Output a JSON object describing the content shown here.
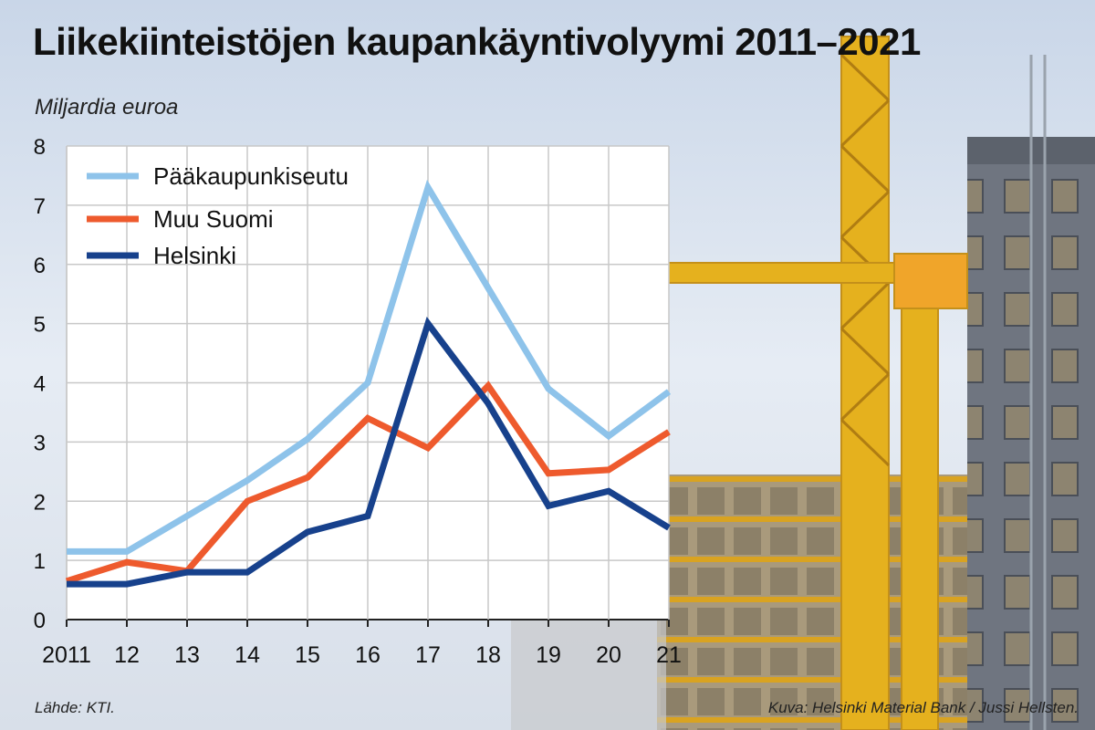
{
  "title": "Liikekiinteistöjen kaupankäyntivolyymi 2011–2021",
  "unit_label": "Miljardia euroa",
  "source": "Lähde: KTI.",
  "photo_credit": "Kuva: Helsinki Material Bank / Jussi Hellsten.",
  "chart_data": {
    "type": "line",
    "title": "Liikekiinteistöjen kaupankäyntivolyymi 2011–2021",
    "ylabel": "Miljardia euroa",
    "xlabel": "",
    "categories": [
      "2011",
      "12",
      "13",
      "14",
      "15",
      "16",
      "17",
      "18",
      "19",
      "20",
      "21"
    ],
    "ylim": [
      0,
      8
    ],
    "yticks": [
      0,
      1,
      2,
      3,
      4,
      5,
      6,
      7,
      8
    ],
    "grid": true,
    "legend_position": "top-left",
    "series": [
      {
        "name": "Pääkaupunkiseutu",
        "color": "#8ec3ea",
        "values": [
          1.15,
          1.15,
          1.75,
          2.35,
          3.05,
          4.0,
          7.3,
          5.6,
          3.9,
          3.1,
          3.85
        ]
      },
      {
        "name": "Muu Suomi",
        "color": "#ee5a2d",
        "values": [
          0.65,
          0.97,
          0.82,
          2.0,
          2.4,
          3.4,
          2.9,
          3.95,
          2.47,
          2.53,
          3.17
        ]
      },
      {
        "name": "Helsinki",
        "color": "#17418c",
        "values": [
          0.6,
          0.6,
          0.8,
          0.8,
          1.48,
          1.75,
          5.0,
          3.65,
          1.92,
          2.17,
          1.55
        ]
      }
    ]
  }
}
